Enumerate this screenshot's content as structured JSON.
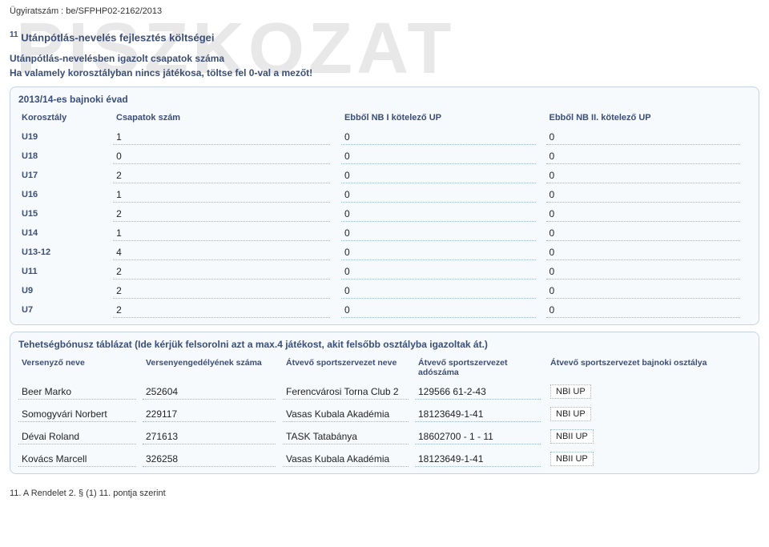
{
  "watermark": "PISZKOZAT",
  "file_number_label": "Ügyiratszám : be/SFPHP02-2162/2013",
  "section_title_sup": "11",
  "section_title": "Utánpótlás-nevelés fejlesztés költségei",
  "intro_line1": "Utánpótlás-nevelésben igazolt csapatok száma",
  "intro_line2": "Ha valamely korosztályban nincs játékosa, töltse fel 0-val a mezőt!",
  "panel_header": "2013/14-es bajnoki évad",
  "age_table": {
    "headers": [
      "Korosztály",
      "Csapatok szám",
      "Ebből NB I kötelező UP",
      "Ebből NB II. kötelező UP"
    ],
    "rows": [
      {
        "label": "U19",
        "v1": "1",
        "v2": "0",
        "v3": "0"
      },
      {
        "label": "U18",
        "v1": "0",
        "v2": "0",
        "v3": "0"
      },
      {
        "label": "U17",
        "v1": "2",
        "v2": "0",
        "v3": "0"
      },
      {
        "label": "U16",
        "v1": "1",
        "v2": "0",
        "v3": "0"
      },
      {
        "label": "U15",
        "v1": "2",
        "v2": "0",
        "v3": "0"
      },
      {
        "label": "U14",
        "v1": "1",
        "v2": "0",
        "v3": "0"
      },
      {
        "label": "U13-12",
        "v1": "4",
        "v2": "0",
        "v3": "0"
      },
      {
        "label": "U11",
        "v1": "2",
        "v2": "0",
        "v3": "0"
      },
      {
        "label": "U9",
        "v1": "2",
        "v2": "0",
        "v3": "0"
      },
      {
        "label": "U7",
        "v1": "2",
        "v2": "0",
        "v3": "0"
      }
    ]
  },
  "talent_header": "Tehetségbónusz táblázat (Ide kérjük felsorolni azt a max.4 játékost, akit felsőbb osztályba igazoltak át.)",
  "talent_table": {
    "headers": [
      "Versenyző neve",
      "Versenyengedélyének száma",
      "Átvevő sportszervezet neve",
      "Átvevő sportszervezet adószáma",
      "Átvevő sportszervezet bajnoki osztálya"
    ],
    "rows": [
      {
        "c0": "Beer Marko",
        "c1": "252604",
        "c2": "Ferencvárosi Torna Club 2",
        "c3": "129566 61-2-43",
        "c4": "NBI UP"
      },
      {
        "c0": "Somogyvári Norbert",
        "c1": "229117",
        "c2": "Vasas Kubala Akadémia",
        "c3": "18123649-1-41",
        "c4": "NBI UP"
      },
      {
        "c0": "Dévai Roland",
        "c1": "271613",
        "c2": "TASK Tatabánya",
        "c3": "18602700 - 1 - 11",
        "c4": "NBII UP"
      },
      {
        "c0": "Kovács Marcell",
        "c1": "326258",
        "c2": "Vasas Kubala Akadémia",
        "c3": "18123649-1-41",
        "c4": "NBII UP"
      }
    ]
  },
  "footnote": "11. A Rendelet 2. § (1) 11. pontja szerint"
}
